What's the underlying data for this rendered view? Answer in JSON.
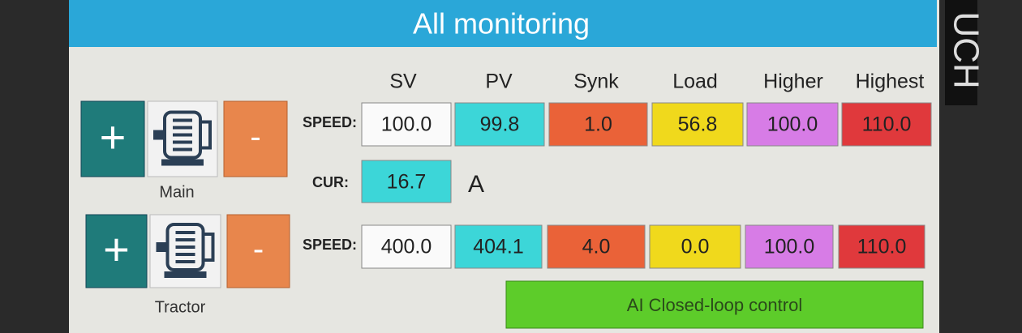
{
  "header": {
    "title": "All monitoring"
  },
  "bezel_text": "UCH",
  "columns": [
    "SV",
    "PV",
    "Synk",
    "Load",
    "Higher",
    "Highest"
  ],
  "motors": [
    {
      "name": "Main",
      "plus": "+",
      "minus": "-",
      "speed_label": "SPEED:",
      "speed": [
        "100.0",
        "99.8",
        "1.0",
        "56.8",
        "100.0",
        "110.0"
      ],
      "cur_label": "CUR:",
      "cur": "16.7",
      "cur_unit": "A"
    },
    {
      "name": "Tractor",
      "plus": "+",
      "minus": "-",
      "speed_label": "SPEED:",
      "speed": [
        "400.0",
        "404.1",
        "4.0",
        "0.0",
        "100.0",
        "110.0"
      ]
    }
  ],
  "button": "AI Closed-loop control"
}
